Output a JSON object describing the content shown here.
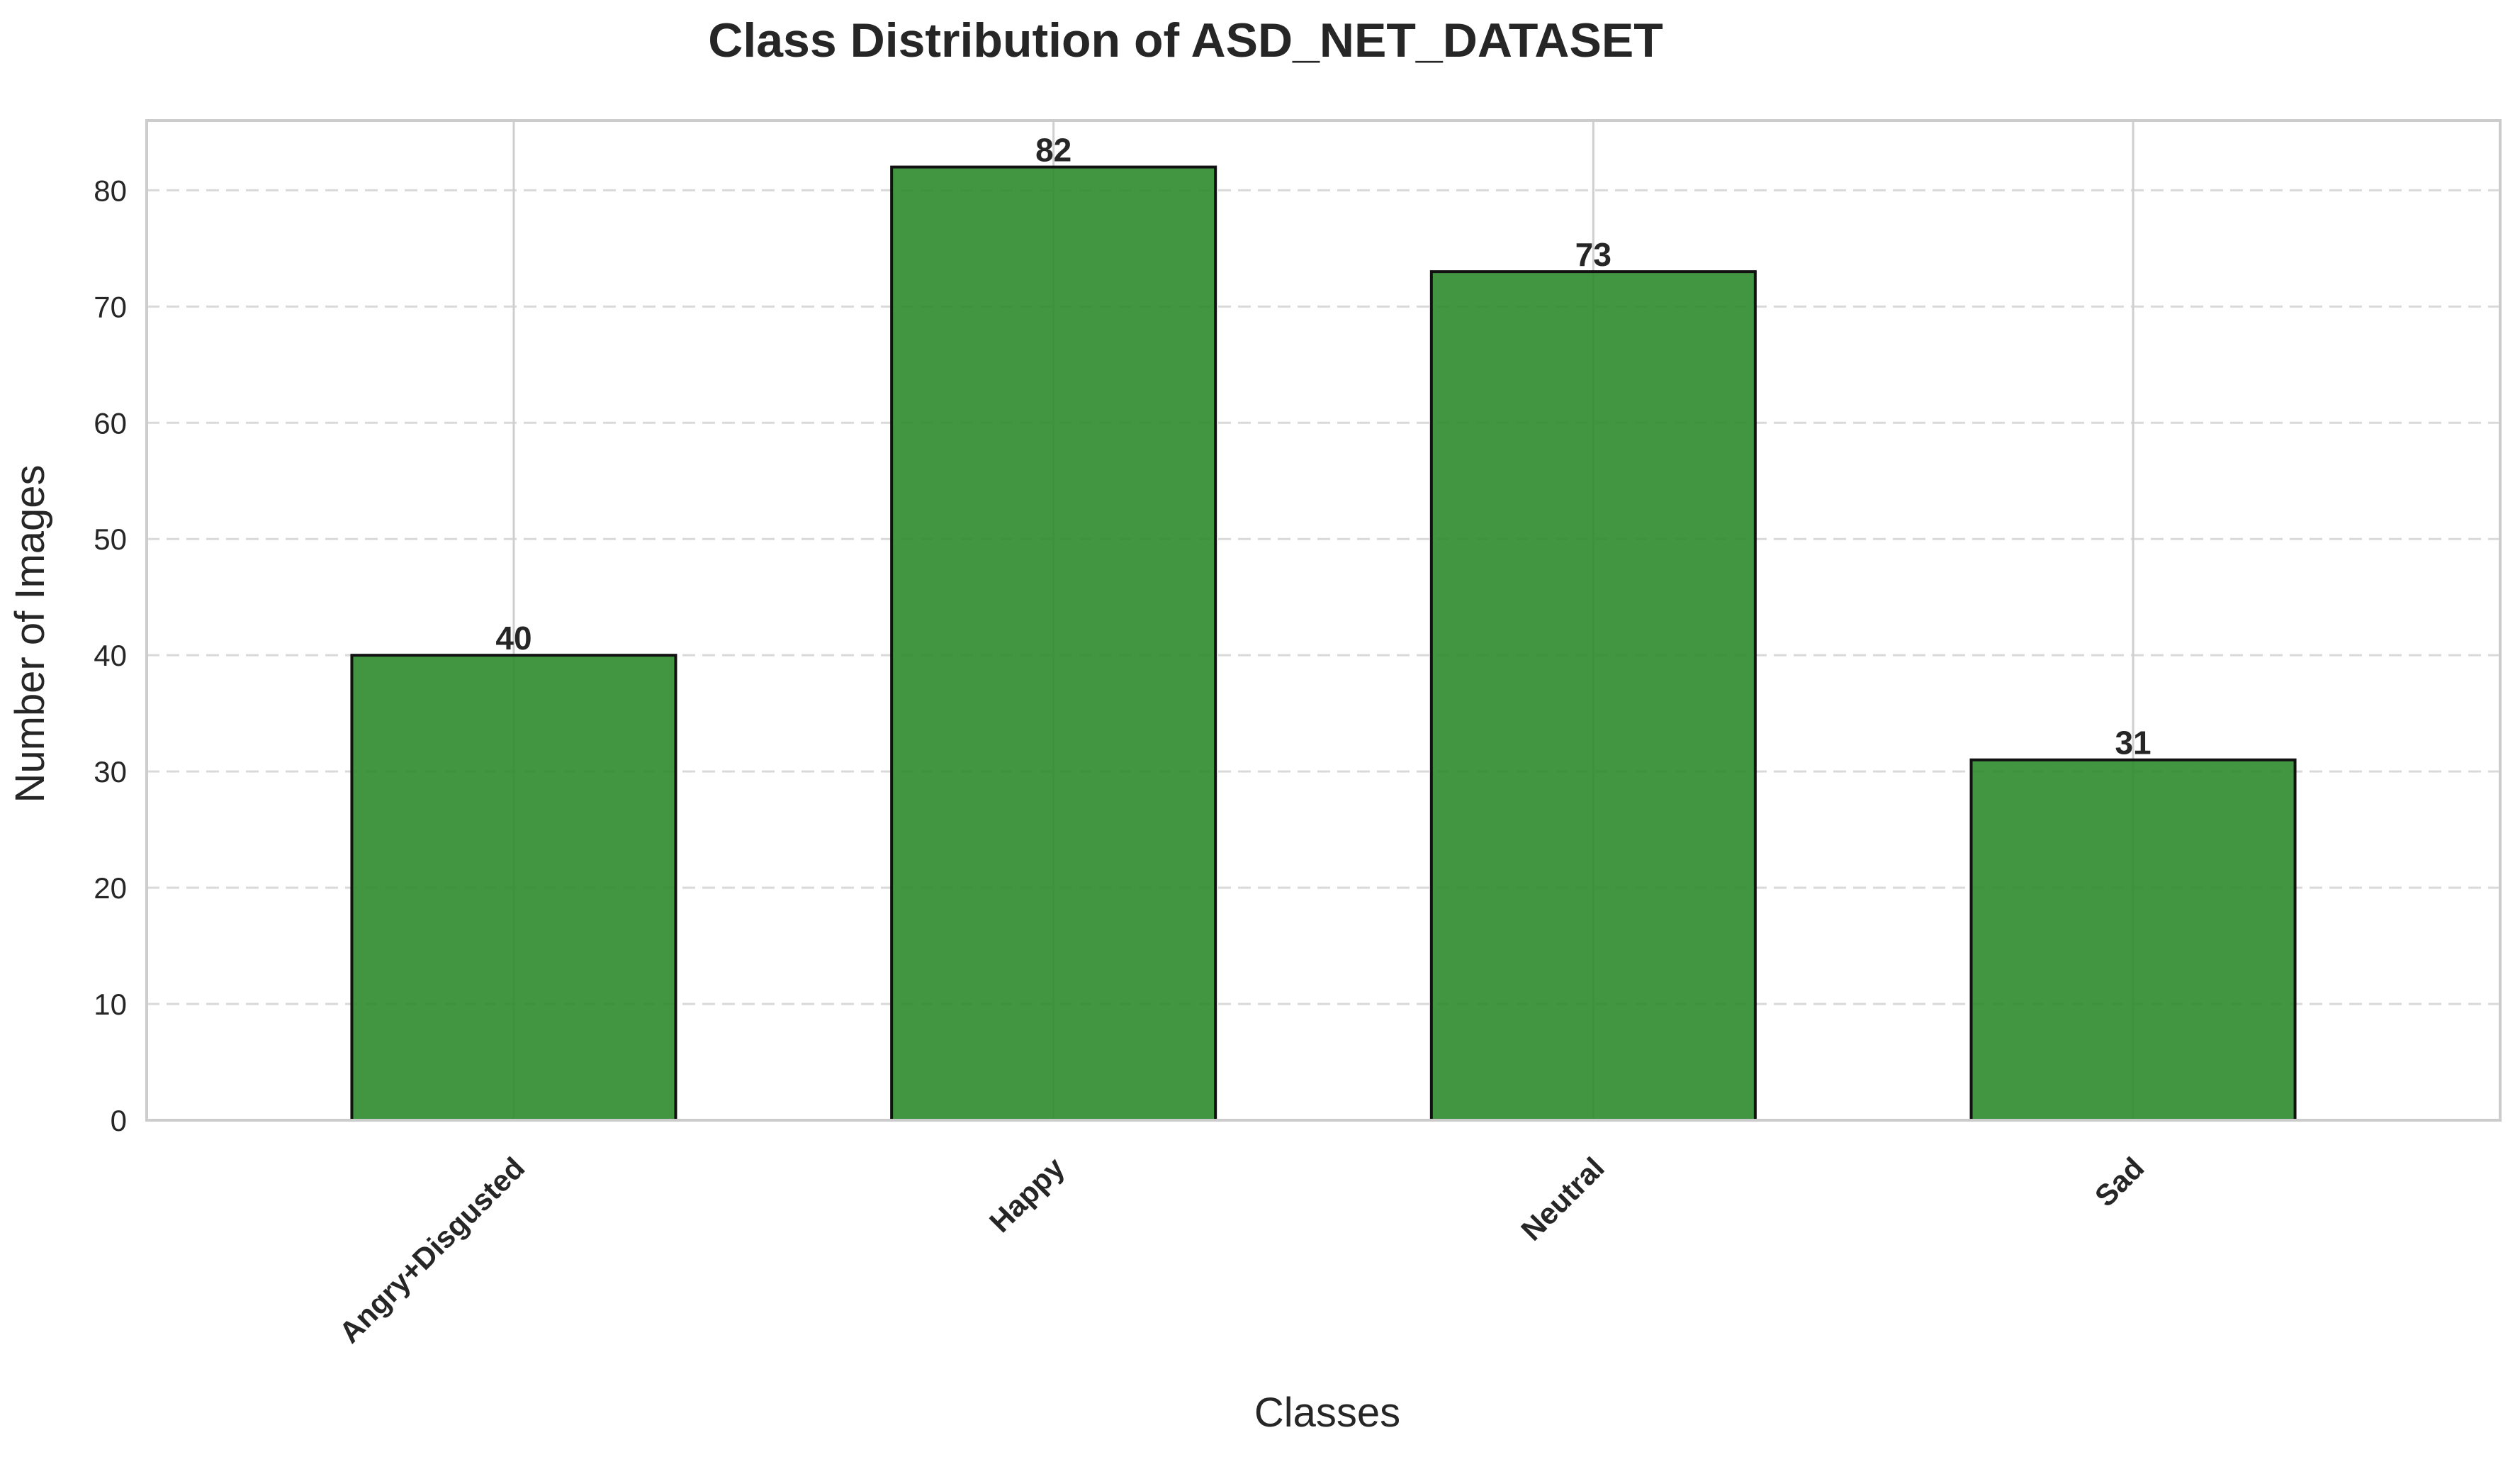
{
  "chart_data": {
    "type": "bar",
    "title": "Class Distribution of ASD_NET_DATASET",
    "xlabel": "Classes",
    "ylabel": "Number of Images",
    "categories": [
      "Angry+Disgusted",
      "Happy",
      "Neutral",
      "Sad"
    ],
    "values": [
      40,
      82,
      73,
      31
    ],
    "data_labels": [
      "40",
      "82",
      "73",
      "31"
    ],
    "ylim": [
      0,
      86
    ],
    "yticks": [
      0,
      10,
      20,
      30,
      40,
      50,
      60,
      70,
      80
    ],
    "ytick_labels": [
      "0",
      "10",
      "20",
      "30",
      "40",
      "50",
      "60",
      "70",
      "80"
    ],
    "grid": true,
    "legend": "none",
    "colors": {
      "bar_fill": "#2e8b2e",
      "bar_edge": "#111111",
      "grid": "#d9d9d9",
      "spine": "#cccccc",
      "text": "#262626"
    }
  }
}
